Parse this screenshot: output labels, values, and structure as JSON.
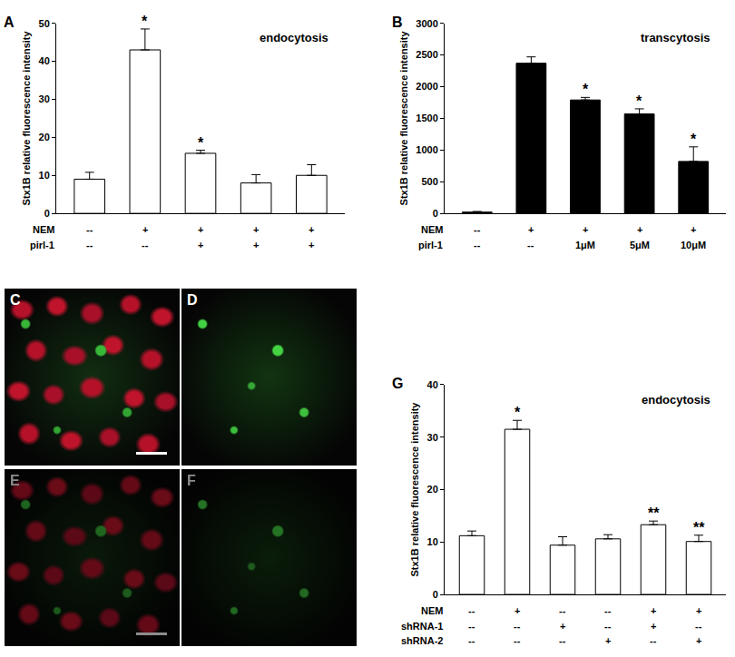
{
  "chart_data": [
    {
      "panel": "A",
      "type": "bar",
      "annotation": "endocytosis",
      "y_label": "Stx1B relative fluorescence intensity",
      "values": [
        9,
        43,
        15.8,
        8,
        10
      ],
      "errors": [
        1.8,
        5.5,
        0.8,
        2.2,
        2.8
      ],
      "significance": [
        null,
        "*",
        "*",
        null,
        null
      ],
      "conditions": [
        {
          "label": "NEM",
          "values": [
            "--",
            "+",
            "+",
            "+",
            "+"
          ]
        },
        {
          "label": "pirl-1",
          "values": [
            "--",
            "--",
            "+",
            "+",
            "+"
          ]
        }
      ],
      "ylim": [
        0,
        50
      ],
      "yticks": [
        0,
        10,
        20,
        30,
        40,
        50
      ],
      "color": "#ffffff",
      "tick_labels": "y",
      "grid": false
    },
    {
      "panel": "B",
      "type": "bar",
      "annotation": "transcytosis",
      "y_label": "Stx1B relative fluorescence intensity",
      "values": [
        20,
        2370,
        1790,
        1570,
        820
      ],
      "errors": [
        10,
        100,
        40,
        80,
        230
      ],
      "significance": [
        null,
        null,
        "*",
        "*",
        "*"
      ],
      "conditions": [
        {
          "label": "NEM",
          "values": [
            "--",
            "+",
            "+",
            "+",
            "+"
          ]
        },
        {
          "label": "pirl-1",
          "values": [
            "--",
            "--",
            "1μM",
            "5μM",
            "10μM"
          ]
        }
      ],
      "ylim": [
        0,
        3000
      ],
      "yticks": [
        0,
        500,
        1000,
        1500,
        2000,
        2500,
        3000
      ],
      "color": "#000000",
      "tick_labels": "y",
      "grid": false
    },
    {
      "panel": "G",
      "type": "bar",
      "annotation": "endocytosis",
      "y_label": "Stx1B relative fluorescence intensity",
      "values": [
        11.2,
        31.5,
        9.4,
        10.6,
        13.3,
        10.1
      ],
      "errors": [
        0.9,
        1.7,
        1.6,
        0.8,
        0.7,
        1.2
      ],
      "significance": [
        null,
        "*",
        null,
        null,
        "**",
        "**"
      ],
      "conditions": [
        {
          "label": "NEM",
          "values": [
            "--",
            "+",
            "--",
            "--",
            "+",
            "+"
          ]
        },
        {
          "label": "shRNA-1",
          "values": [
            "--",
            "--",
            "+",
            "--",
            "+",
            "--"
          ]
        },
        {
          "label": "shRNA-2",
          "values": [
            "--",
            "--",
            "--",
            "+",
            "--",
            "+"
          ]
        }
      ],
      "ylim": [
        0,
        40
      ],
      "yticks": [
        0,
        10,
        20,
        30,
        40
      ],
      "color": "#ffffff",
      "tick_labels": "y",
      "grid": false
    }
  ],
  "micrographs": [
    {
      "panel": "C"
    },
    {
      "panel": "D"
    },
    {
      "panel": "E"
    },
    {
      "panel": "F"
    }
  ]
}
